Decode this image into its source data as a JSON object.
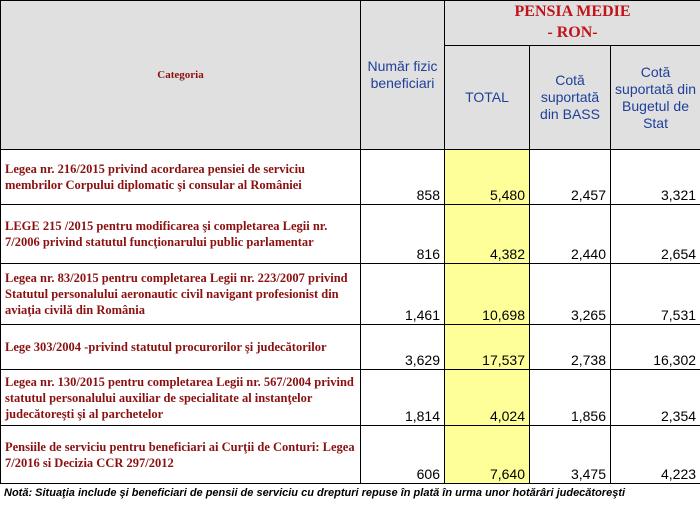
{
  "header": {
    "categoria": "Categoria",
    "numar_fizic": "Număr fizic beneficiari",
    "pensia_medie": "PENSIA MEDIE",
    "ron": "- RON-",
    "total": "TOTAL",
    "cota_bass": "Cotă suportată din BASS",
    "cota_buget": "Cotă suportată din Bugetul de Stat"
  },
  "rows": [
    {
      "categoria": "Legea nr. 216/2015 privind acordarea pensiei de serviciu membrilor Corpului diplomatic şi consular al României",
      "numar": "858",
      "total": "5,480",
      "bass": "2,457",
      "buget": "3,321"
    },
    {
      "categoria": "LEGE 215 /2015  pentru modificarea şi completarea Legii nr. 7/2006 privind statutul funcţionarului public parlamentar",
      "numar": "816",
      "total": "4,382",
      "bass": "2,440",
      "buget": "2,654"
    },
    {
      "categoria": " Legea nr. 83/2015 pentru completarea Legii nr. 223/2007 privind Statutul personalului aeronautic civil navigant profesionist din aviaţia civilă din România",
      "numar": "1,461",
      "total": "10,698",
      "bass": "3,265",
      "buget": "7,531"
    },
    {
      "categoria": "Lege 303/2004 -privind statutul procurorilor şi judecătorilor",
      "numar": "3,629",
      "total": "17,537",
      "bass": "2,738",
      "buget": "16,302"
    },
    {
      "categoria": "Legea nr. 130/2015 pentru completarea Legii nr. 567/2004 privind statutul personalului auxiliar de specialitate al instanţelor judecătoreşti şi al parchetelor",
      "numar": "1,814",
      "total": "4,024",
      "bass": "1,856",
      "buget": "2,354"
    },
    {
      "categoria": "Pensiile de serviciu pentru beneficiari ai Curţii de Conturi: Legea 7/2016 si  Decizia CCR 297/2012",
      "numar": "606",
      "total": "7,640",
      "bass": "3,475",
      "buget": "4,223"
    }
  ],
  "note": "Notă: Situaţia include şi beneficiari de pensii de serviciu cu drepturi repuse în plată în urma unor hotărâri judecătoreşti",
  "colors": {
    "header_bg": "#e0e0e0",
    "total_highlight": "#ffff99",
    "category_text": "#8b1010",
    "pensia_title": "#c0141a",
    "column_header_text": "#1f3f99"
  }
}
